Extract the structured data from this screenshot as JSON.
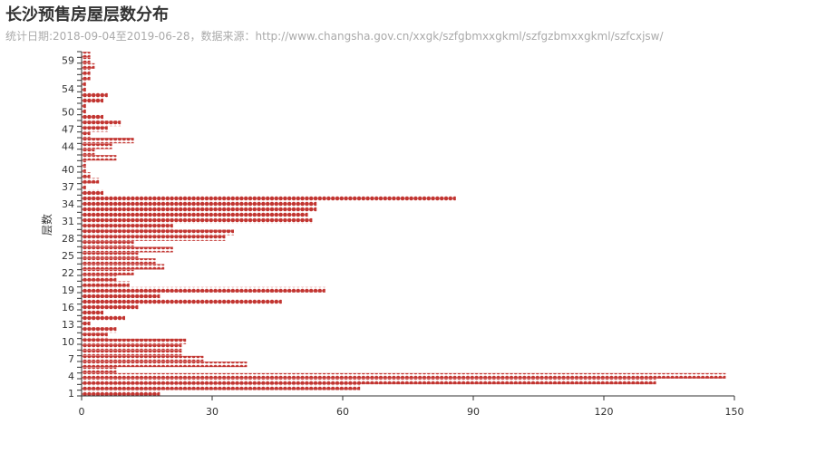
{
  "chart_data": {
    "type": "pictorial-bar",
    "title": "长沙预售房屋层数分布",
    "subtitle": "统计日期:2018-09-04至2019-06-28，数据来源：http://www.changsha.gov.cn/xxgk/szfgbmxxgkml/szfgzbmxxgkml/szfcxjsw/",
    "ylabel": "层数",
    "xlabel": "",
    "xlim": [
      0,
      150
    ],
    "x_ticks": [
      0,
      30,
      60,
      90,
      120,
      150
    ],
    "y_ticks": [
      1,
      4,
      7,
      10,
      13,
      16,
      19,
      22,
      25,
      28,
      31,
      34,
      37,
      40,
      44,
      47,
      50,
      54,
      59
    ],
    "categories": [
      1,
      2,
      3,
      4,
      5,
      6,
      7,
      8,
      9,
      10,
      11,
      12,
      13,
      14,
      15,
      16,
      17,
      18,
      19,
      20,
      21,
      22,
      23,
      24,
      25,
      26,
      27,
      28,
      29,
      30,
      31,
      32,
      33,
      34,
      35,
      36,
      37,
      38,
      39,
      40,
      41,
      42,
      43,
      44,
      45,
      46,
      47,
      48,
      49,
      50,
      51,
      52,
      53,
      54,
      55,
      56,
      57,
      58,
      59,
      60
    ],
    "values": [
      18,
      64,
      132,
      148,
      8,
      38,
      28,
      23,
      23,
      24,
      6,
      8,
      2,
      10,
      5,
      13,
      46,
      18,
      56,
      11,
      8,
      12,
      19,
      17,
      13,
      21,
      12,
      33,
      35,
      21,
      53,
      52,
      54,
      54,
      86,
      5,
      1,
      4,
      2,
      1,
      1,
      8,
      3,
      7,
      12,
      2,
      6,
      9,
      5,
      1,
      1,
      5,
      6,
      1,
      1,
      2,
      2,
      3,
      2,
      2
    ],
    "grid": false,
    "legend": "none",
    "color": "#c23531"
  }
}
